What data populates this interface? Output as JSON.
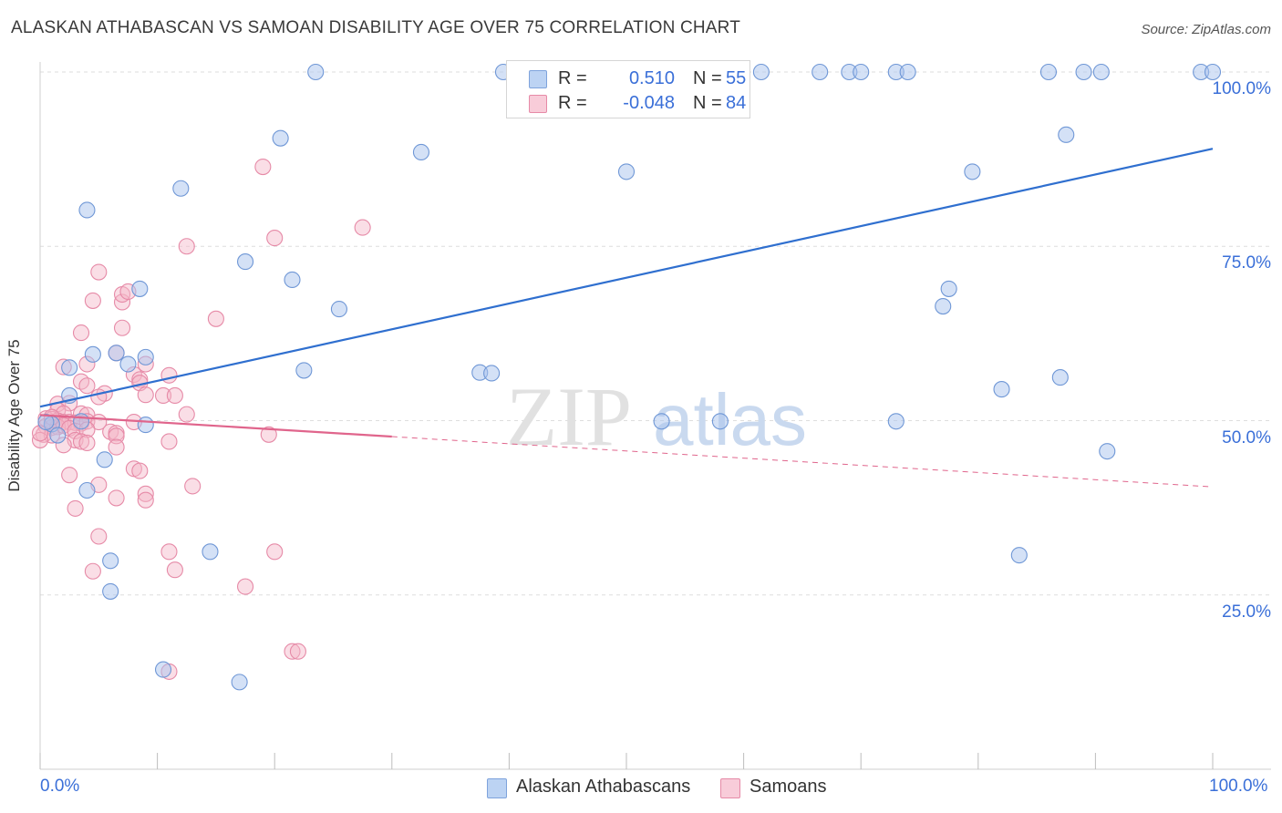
{
  "title": "ALASKAN ATHABASCAN VS SAMOAN DISABILITY AGE OVER 75 CORRELATION CHART",
  "source": "Source: ZipAtlas.com",
  "watermark": {
    "zip": "ZIP",
    "atlas": "atlas"
  },
  "legend": {
    "rows": [
      {
        "r_label": "R =",
        "r_value": "0.510",
        "n_label": "N =",
        "n_value": "55"
      },
      {
        "r_label": "R =",
        "r_value": "-0.048",
        "n_label": "N =",
        "n_value": "84"
      }
    ]
  },
  "bottom_legend": [
    "Alaskan Athabascans",
    "Samoans"
  ],
  "colors": {
    "blue_fill": "#a9c4ee",
    "blue_stroke": "#6f97d6",
    "blue_line": "#2f6fcf",
    "pink_fill": "#f4b6c8",
    "pink_stroke": "#e68aa7",
    "pink_line": "#e0658c",
    "tick_text": "#3a6fd8",
    "grid": "#dedede"
  },
  "chart_data": {
    "type": "scatter",
    "xlabel": "",
    "ylabel": "Disability Age Over 75",
    "xlim": [
      0,
      100
    ],
    "ylim": [
      0,
      100
    ],
    "x_tick_labels": [
      "0.0%",
      "100.0%"
    ],
    "y_ticks": [
      25,
      50,
      75,
      100
    ],
    "y_tick_labels": [
      "25.0%",
      "50.0%",
      "75.0%",
      "100.0%"
    ],
    "grid": true,
    "legend_position": "top-center",
    "series": [
      {
        "name": "Alaskan Athabascans",
        "color": "#a9c4ee",
        "trend": {
          "x0": 0,
          "y0": 52.0,
          "x1": 100,
          "y1": 89.0,
          "dashed_from": null
        },
        "points": [
          [
            23.5,
            100
          ],
          [
            39.5,
            100
          ],
          [
            42.5,
            100
          ],
          [
            61.5,
            100
          ],
          [
            66.5,
            100
          ],
          [
            69.0,
            100
          ],
          [
            70.0,
            100
          ],
          [
            73.0,
            100
          ],
          [
            74.0,
            100
          ],
          [
            86.0,
            100
          ],
          [
            89.0,
            100
          ],
          [
            90.5,
            100
          ],
          [
            99.0,
            100
          ],
          [
            100.0,
            100
          ],
          [
            20.5,
            90.5
          ],
          [
            32.5,
            88.5
          ],
          [
            87.5,
            91.0
          ],
          [
            50.0,
            85.7
          ],
          [
            79.5,
            85.7
          ],
          [
            12.0,
            83.3
          ],
          [
            4.0,
            80.2
          ],
          [
            17.5,
            72.8
          ],
          [
            21.5,
            70.2
          ],
          [
            8.5,
            68.9
          ],
          [
            77.5,
            68.9
          ],
          [
            77.0,
            66.4
          ],
          [
            25.5,
            66.0
          ],
          [
            4.5,
            59.5
          ],
          [
            6.5,
            59.7
          ],
          [
            9.0,
            59.1
          ],
          [
            7.5,
            58.1
          ],
          [
            2.5,
            57.6
          ],
          [
            22.5,
            57.2
          ],
          [
            37.5,
            56.9
          ],
          [
            38.5,
            56.8
          ],
          [
            87.0,
            56.2
          ],
          [
            82.0,
            54.5
          ],
          [
            2.5,
            53.6
          ],
          [
            3.5,
            49.9
          ],
          [
            53.0,
            49.9
          ],
          [
            58.0,
            49.9
          ],
          [
            73.0,
            49.9
          ],
          [
            9.0,
            49.4
          ],
          [
            1.0,
            49.5
          ],
          [
            1.5,
            47.9
          ],
          [
            5.5,
            44.4
          ],
          [
            91.0,
            45.6
          ],
          [
            4.0,
            40.0
          ],
          [
            83.5,
            30.7
          ],
          [
            6.0,
            29.9
          ],
          [
            14.5,
            31.2
          ],
          [
            6.0,
            25.5
          ],
          [
            10.5,
            14.3
          ],
          [
            17.0,
            12.5
          ],
          [
            0.5,
            49.8
          ]
        ]
      },
      {
        "name": "Samoans",
        "color": "#f4b6c8",
        "trend": {
          "x0": 0,
          "y0": 50.8,
          "x1": 100,
          "y1": 40.5,
          "solid_until": 30
        },
        "points": [
          [
            19.0,
            86.4
          ],
          [
            27.5,
            77.7
          ],
          [
            20.0,
            76.2
          ],
          [
            12.5,
            75.0
          ],
          [
            5.0,
            71.3
          ],
          [
            4.5,
            67.2
          ],
          [
            7.0,
            67.0
          ],
          [
            7.0,
            68.1
          ],
          [
            7.5,
            68.5
          ],
          [
            15.0,
            64.6
          ],
          [
            3.5,
            62.6
          ],
          [
            7.0,
            63.3
          ],
          [
            6.5,
            59.7
          ],
          [
            4.0,
            58.1
          ],
          [
            9.0,
            58.1
          ],
          [
            2.0,
            57.7
          ],
          [
            8.0,
            56.6
          ],
          [
            11.0,
            56.5
          ],
          [
            3.5,
            55.6
          ],
          [
            8.5,
            55.9
          ],
          [
            8.5,
            55.4
          ],
          [
            4.0,
            55.0
          ],
          [
            5.5,
            53.9
          ],
          [
            9.0,
            53.7
          ],
          [
            10.5,
            53.6
          ],
          [
            11.5,
            53.6
          ],
          [
            5.0,
            53.4
          ],
          [
            1.5,
            52.4
          ],
          [
            2.5,
            52.5
          ],
          [
            1.5,
            51.5
          ],
          [
            2.0,
            51.0
          ],
          [
            3.5,
            51.0
          ],
          [
            4.0,
            50.8
          ],
          [
            12.5,
            50.9
          ],
          [
            0.5,
            50.3
          ],
          [
            1.0,
            50.2
          ],
          [
            1.5,
            50.0
          ],
          [
            2.0,
            49.8
          ],
          [
            2.5,
            49.8
          ],
          [
            3.0,
            49.7
          ],
          [
            3.5,
            49.6
          ],
          [
            4.0,
            49.9
          ],
          [
            5.0,
            49.8
          ],
          [
            8.0,
            49.8
          ],
          [
            0.5,
            49.2
          ],
          [
            1.0,
            49.0
          ],
          [
            1.5,
            49.1
          ],
          [
            2.0,
            49.3
          ],
          [
            2.5,
            48.9
          ],
          [
            3.0,
            48.5
          ],
          [
            4.0,
            48.7
          ],
          [
            6.0,
            48.4
          ],
          [
            0.3,
            48.0
          ],
          [
            1.0,
            47.9
          ],
          [
            19.5,
            48.0
          ],
          [
            6.5,
            48.2
          ],
          [
            3.0,
            47.2
          ],
          [
            3.5,
            47.0
          ],
          [
            4.0,
            46.8
          ],
          [
            6.5,
            47.8
          ],
          [
            11.0,
            47.0
          ],
          [
            2.0,
            46.5
          ],
          [
            6.5,
            46.2
          ],
          [
            0.0,
            47.2
          ],
          [
            8.0,
            43.1
          ],
          [
            8.5,
            42.8
          ],
          [
            2.5,
            42.2
          ],
          [
            13.0,
            40.6
          ],
          [
            5.0,
            40.8
          ],
          [
            9.0,
            39.5
          ],
          [
            9.0,
            38.6
          ],
          [
            6.5,
            38.9
          ],
          [
            3.0,
            37.4
          ],
          [
            5.0,
            33.4
          ],
          [
            11.0,
            31.2
          ],
          [
            20.0,
            31.2
          ],
          [
            4.5,
            28.4
          ],
          [
            11.5,
            28.6
          ],
          [
            17.5,
            26.2
          ],
          [
            21.5,
            16.9
          ],
          [
            22.0,
            16.9
          ],
          [
            11.0,
            14.0
          ],
          [
            0.0,
            48.2
          ],
          [
            1.0,
            50.5
          ]
        ]
      }
    ]
  }
}
